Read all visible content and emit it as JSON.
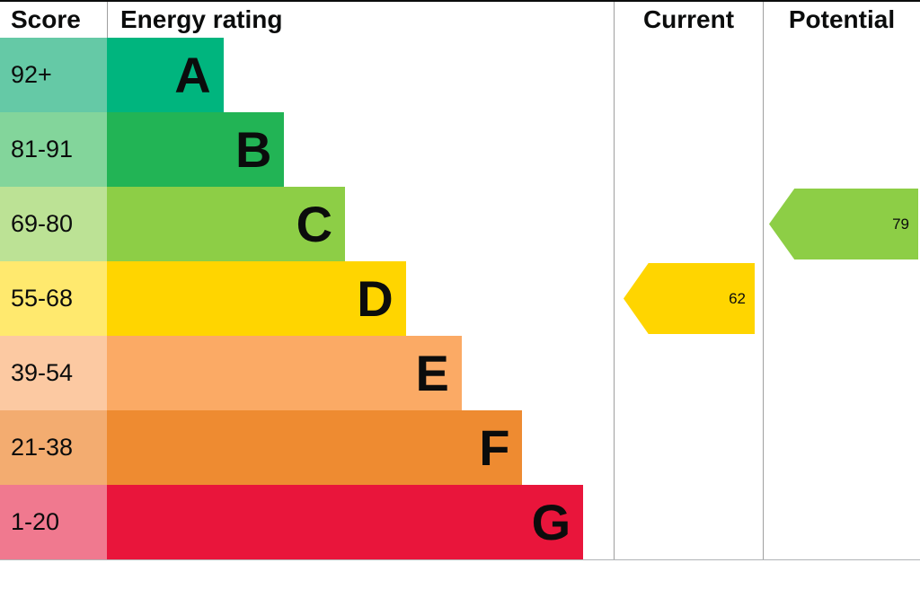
{
  "header": {
    "score_label": "Score",
    "rating_label": "Energy rating",
    "current_label": "Current",
    "potential_label": "Potential"
  },
  "chart_data": {
    "type": "bar",
    "title": "Energy rating (EPC style band chart)",
    "categories": [
      "92+",
      "81-91",
      "69-80",
      "55-68",
      "39-54",
      "21-38",
      "1-20"
    ],
    "bands": [
      {
        "score_range": "92+",
        "letter": "A",
        "bar_color": "#00b57e",
        "score_color": "#65c9a6",
        "bar_width_pct": 23
      },
      {
        "score_range": "81-91",
        "letter": "B",
        "bar_color": "#22b455",
        "score_color": "#83d59b",
        "bar_width_pct": 35
      },
      {
        "score_range": "69-80",
        "letter": "C",
        "bar_color": "#8dce46",
        "score_color": "#bce295",
        "bar_width_pct": 47
      },
      {
        "score_range": "55-68",
        "letter": "D",
        "bar_color": "#ffd500",
        "score_color": "#ffe96e",
        "bar_width_pct": 59
      },
      {
        "score_range": "39-54",
        "letter": "E",
        "bar_color": "#fbaa65",
        "score_color": "#fcc9a2",
        "bar_width_pct": 70
      },
      {
        "score_range": "21-38",
        "letter": "F",
        "bar_color": "#ee8b31",
        "score_color": "#f3ac70",
        "bar_width_pct": 82
      },
      {
        "score_range": "1-20",
        "letter": "G",
        "bar_color": "#e9153b",
        "score_color": "#f0798f",
        "bar_width_pct": 94
      }
    ],
    "current": {
      "value": "62",
      "band": "D",
      "band_index": 3,
      "color": "#ffd500"
    },
    "potential": {
      "value": "79",
      "band": "C",
      "band_index": 2,
      "color": "#8dce46"
    }
  }
}
